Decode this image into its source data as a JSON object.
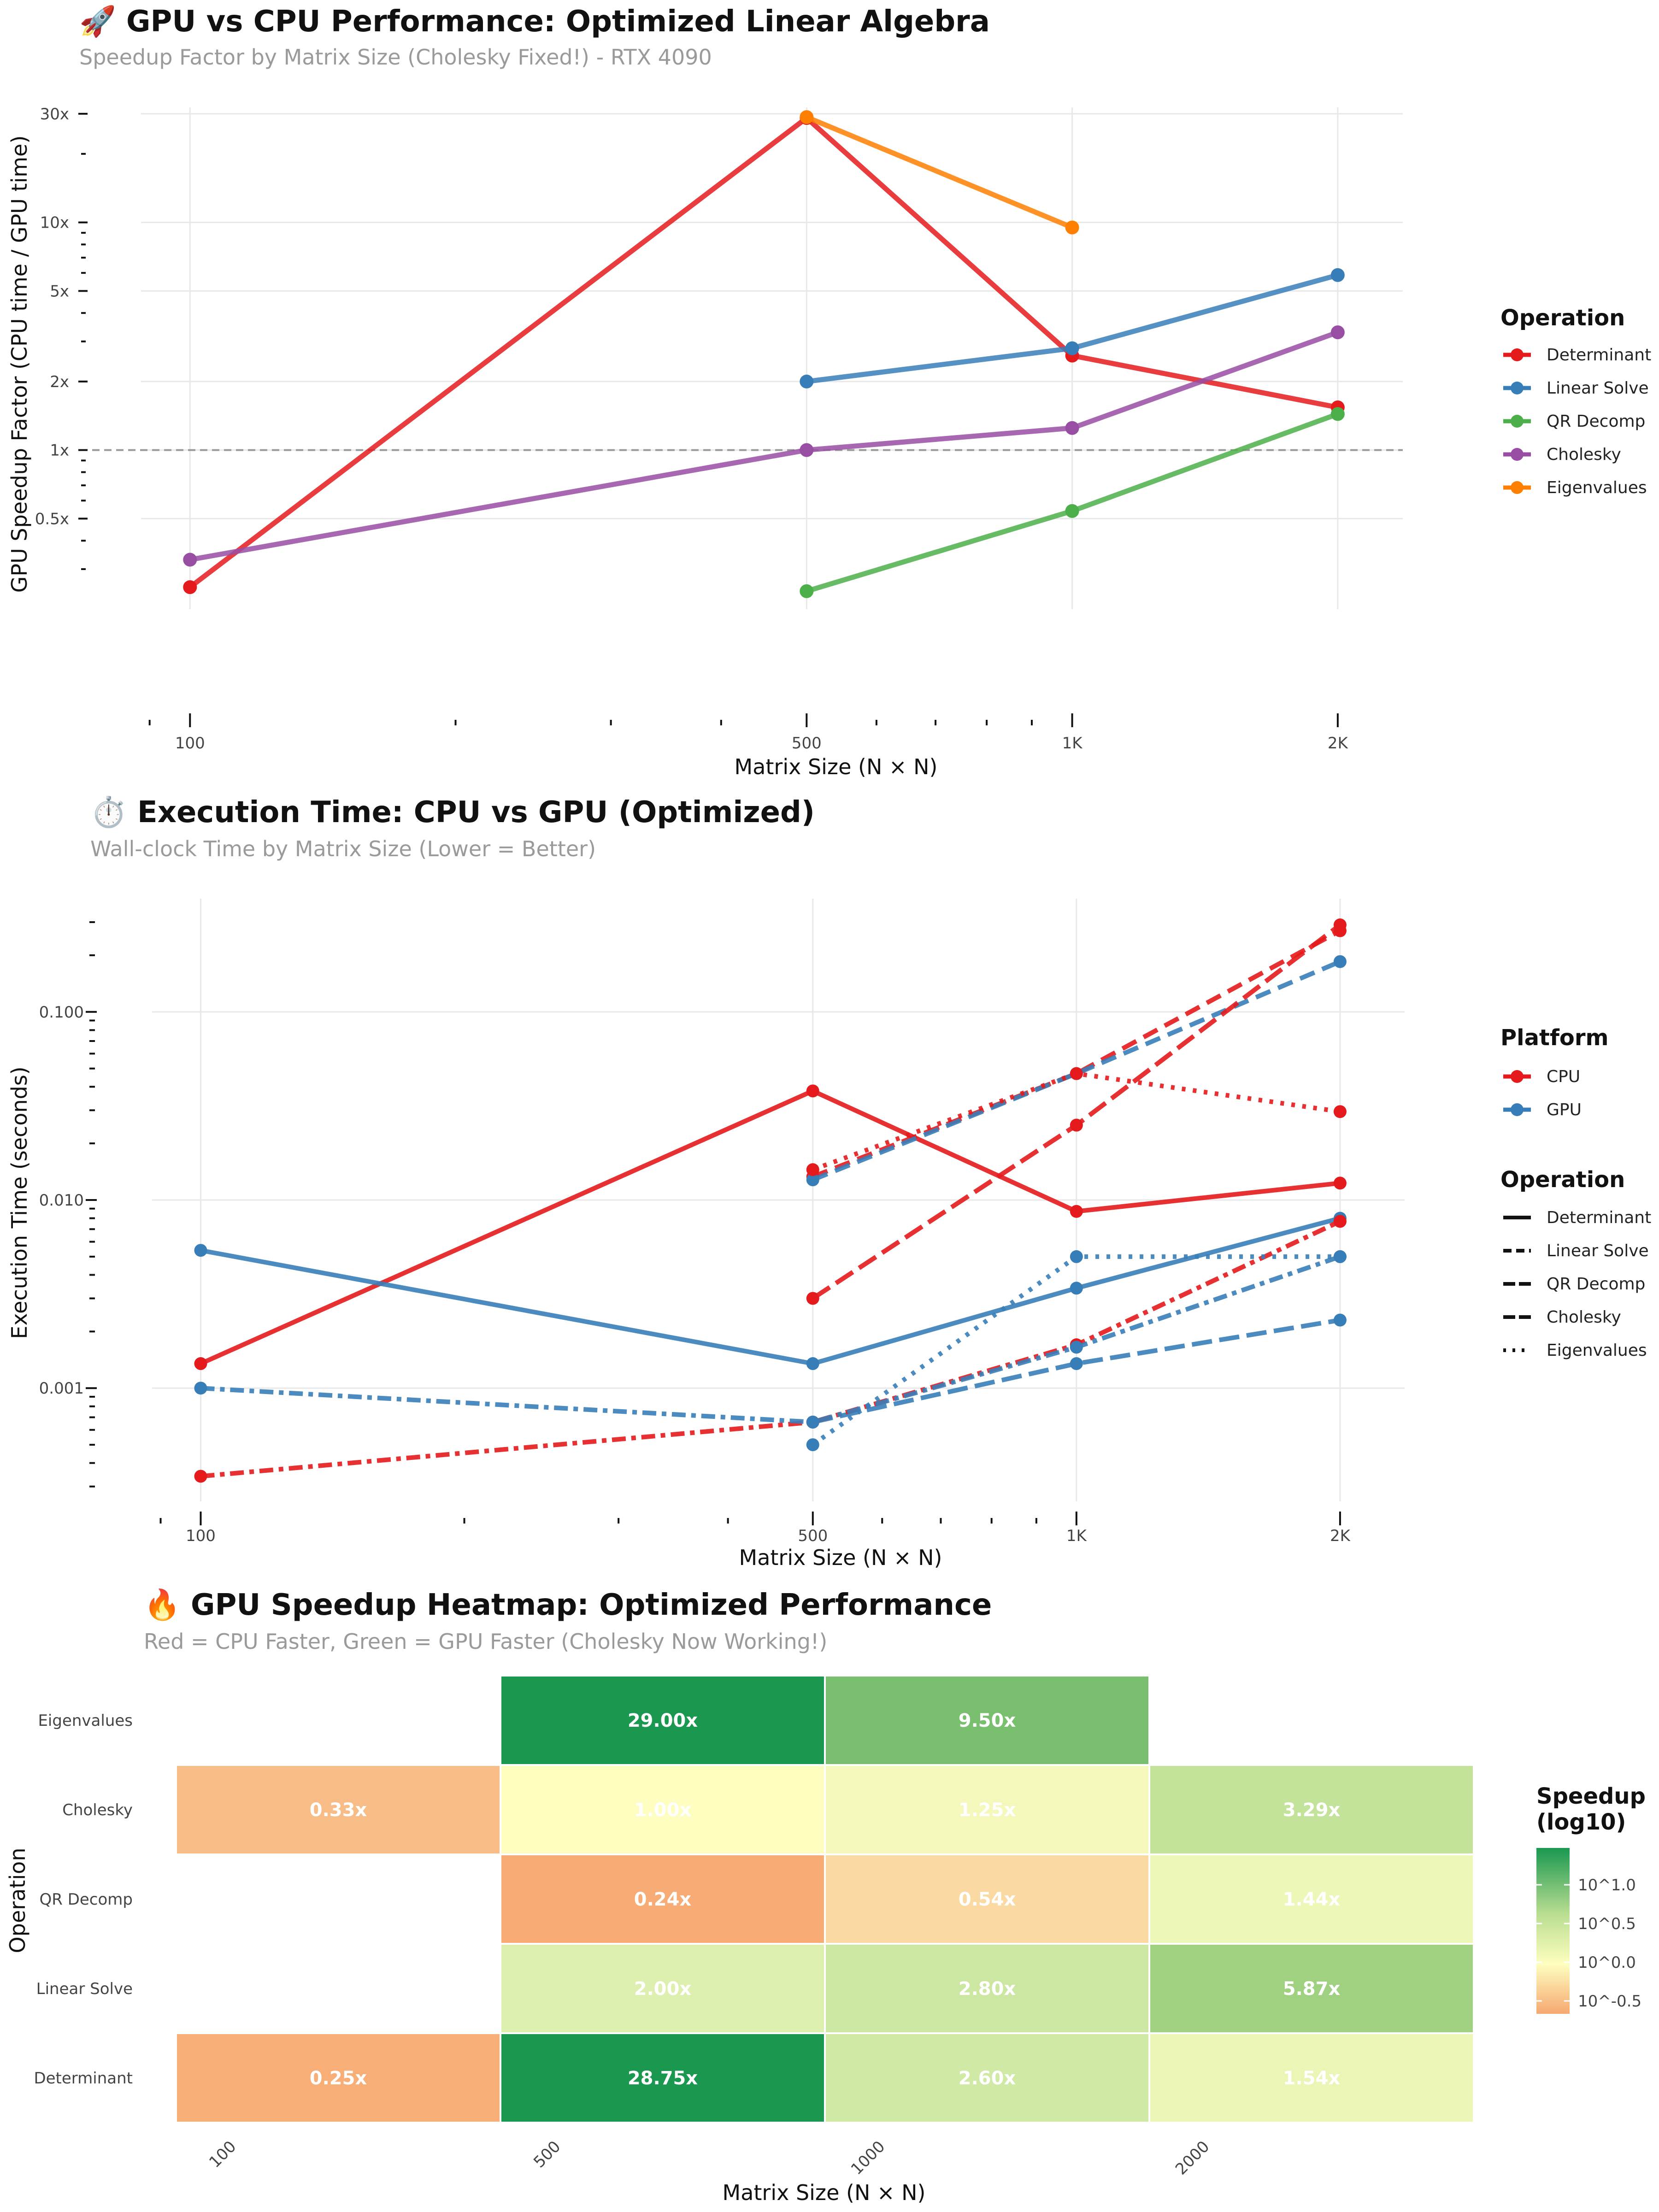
{
  "chart_data": [
    {
      "type": "line",
      "title": "🚀 GPU vs CPU Performance: Optimized Linear Algebra",
      "subtitle": "Speedup Factor by Matrix Size (Cholesky Fixed!) - RTX 4090",
      "xlabel": "Matrix Size (N × N)",
      "ylabel": "GPU Speedup Factor (CPU time / GPU time)",
      "x_scale": "log",
      "y_scale": "log",
      "x_ticks": [
        100,
        500,
        1000,
        2000
      ],
      "x_tick_labels": [
        "100",
        "500",
        "1K",
        "2K"
      ],
      "y_ticks": [
        0.5,
        1,
        2,
        5,
        10,
        30
      ],
      "y_tick_labels": [
        "0.5x",
        "1x",
        "2x",
        "5x",
        "10x",
        "30x"
      ],
      "reference_line": {
        "y": 1,
        "style": "dashed"
      },
      "legend_title": "Operation",
      "legend_position": "right",
      "series": [
        {
          "name": "Determinant",
          "color": "#e41a1c",
          "x": [
            100,
            500,
            1000,
            2000
          ],
          "values": [
            0.25,
            28.75,
            2.6,
            1.54
          ]
        },
        {
          "name": "Linear Solve",
          "color": "#377eb8",
          "x": [
            500,
            1000,
            2000
          ],
          "values": [
            2.0,
            2.8,
            5.87
          ]
        },
        {
          "name": "QR Decomp",
          "color": "#4daf4a",
          "x": [
            500,
            1000,
            2000
          ],
          "values": [
            0.24,
            0.54,
            1.44
          ]
        },
        {
          "name": "Cholesky",
          "color": "#984ea3",
          "x": [
            100,
            500,
            1000,
            2000
          ],
          "values": [
            0.33,
            1.0,
            1.25,
            3.29
          ]
        },
        {
          "name": "Eigenvalues",
          "color": "#ff7f00",
          "x": [
            500,
            1000
          ],
          "values": [
            29.0,
            9.5
          ]
        }
      ]
    },
    {
      "type": "line",
      "title": "⏱️  Execution Time: CPU vs GPU (Optimized)",
      "subtitle": "Wall-clock Time by Matrix Size (Lower = Better)",
      "xlabel": "Matrix Size (N × N)",
      "ylabel": "Execution Time (seconds)",
      "x_scale": "log",
      "y_scale": "log",
      "x_ticks": [
        100,
        500,
        1000,
        2000
      ],
      "x_tick_labels": [
        "100",
        "500",
        "1K",
        "2K"
      ],
      "y_ticks": [
        0.001,
        0.01,
        0.1
      ],
      "y_tick_labels": [
        "0.001",
        "0.010",
        "0.100"
      ],
      "legend_platform_title": "Platform",
      "legend_operation_title": "Operation",
      "legend_position": "right",
      "platforms": [
        {
          "name": "CPU",
          "color": "#e41a1c"
        },
        {
          "name": "GPU",
          "color": "#377eb8"
        }
      ],
      "operations": [
        {
          "name": "Determinant",
          "dash": "solid"
        },
        {
          "name": "Linear Solve",
          "dash": "dashed"
        },
        {
          "name": "QR Decomp",
          "dash": "longdash"
        },
        {
          "name": "Cholesky",
          "dash": "twodash"
        },
        {
          "name": "Eigenvalues",
          "dash": "dotted"
        }
      ],
      "series": [
        {
          "operation": "Determinant",
          "platform": "CPU",
          "x": [
            100,
            500,
            1000,
            2000
          ],
          "values": [
            0.00135,
            0.038,
            0.0087,
            0.0123
          ]
        },
        {
          "operation": "Determinant",
          "platform": "GPU",
          "x": [
            100,
            500,
            1000,
            2000
          ],
          "values": [
            0.0054,
            0.00135,
            0.0034,
            0.008
          ]
        },
        {
          "operation": "Linear Solve",
          "platform": "CPU",
          "x": [
            500,
            1000,
            2000
          ],
          "values": [
            0.0133,
            0.047,
            0.27
          ]
        },
        {
          "operation": "Linear Solve",
          "platform": "GPU",
          "x": [
            500,
            1000,
            2000
          ],
          "values": [
            0.0128,
            0.047,
            0.185
          ]
        },
        {
          "operation": "QR Decomp",
          "platform": "CPU",
          "x": [
            500,
            1000,
            2000
          ],
          "values": [
            0.003,
            0.025,
            0.29
          ]
        },
        {
          "operation": "QR Decomp",
          "platform": "GPU",
          "x": [
            500,
            1000,
            2000
          ],
          "values": [
            0.00066,
            0.00135,
            0.0023
          ]
        },
        {
          "operation": "Cholesky",
          "platform": "CPU",
          "x": [
            100,
            500,
            1000,
            2000
          ],
          "values": [
            0.00034,
            0.00066,
            0.0017,
            0.0077
          ]
        },
        {
          "operation": "Cholesky",
          "platform": "GPU",
          "x": [
            100,
            500,
            1000,
            2000
          ],
          "values": [
            0.001,
            0.00066,
            0.00165,
            0.005
          ]
        },
        {
          "operation": "Eigenvalues",
          "platform": "CPU",
          "x": [
            500,
            1000,
            2000
          ],
          "values": [
            0.0145,
            0.047,
            0.0295
          ]
        },
        {
          "operation": "Eigenvalues",
          "platform": "GPU",
          "x": [
            500,
            1000,
            2000
          ],
          "values": [
            0.0005,
            0.005,
            0.005
          ]
        }
      ]
    },
    {
      "type": "heatmap",
      "title": "🔥 GPU Speedup Heatmap: Optimized Performance",
      "subtitle": "Red = CPU Faster, Green = GPU Faster (Cholesky Now Working!)",
      "xlabel": "Matrix Size (N × N)",
      "ylabel": "Operation",
      "x_categories": [
        "100",
        "500",
        "1000",
        "2000"
      ],
      "y_categories": [
        "Eigenvalues",
        "Cholesky",
        "QR Decomp",
        "Linear Solve",
        "Determinant"
      ],
      "legend_title": "Speedup\n(log10)",
      "legend_ticks": [
        "10^1.0",
        "10^0.5",
        "10^0.0",
        "10^-0.5"
      ],
      "legend_position": "right",
      "cells": [
        {
          "y": "Eigenvalues",
          "x": "500",
          "value": 29.0,
          "label": "29.00x"
        },
        {
          "y": "Eigenvalues",
          "x": "1000",
          "value": 9.5,
          "label": "9.50x"
        },
        {
          "y": "Cholesky",
          "x": "100",
          "value": 0.33,
          "label": "0.33x"
        },
        {
          "y": "Cholesky",
          "x": "500",
          "value": 1.0,
          "label": "1.00x"
        },
        {
          "y": "Cholesky",
          "x": "1000",
          "value": 1.25,
          "label": "1.25x"
        },
        {
          "y": "Cholesky",
          "x": "2000",
          "value": 3.29,
          "label": "3.29x"
        },
        {
          "y": "QR Decomp",
          "x": "500",
          "value": 0.24,
          "label": "0.24x"
        },
        {
          "y": "QR Decomp",
          "x": "1000",
          "value": 0.54,
          "label": "0.54x"
        },
        {
          "y": "QR Decomp",
          "x": "2000",
          "value": 1.44,
          "label": "1.44x"
        },
        {
          "y": "Linear Solve",
          "x": "500",
          "value": 2.0,
          "label": "2.00x"
        },
        {
          "y": "Linear Solve",
          "x": "1000",
          "value": 2.8,
          "label": "2.80x"
        },
        {
          "y": "Linear Solve",
          "x": "2000",
          "value": 5.87,
          "label": "5.87x"
        },
        {
          "y": "Determinant",
          "x": "100",
          "value": 0.25,
          "label": "0.25x"
        },
        {
          "y": "Determinant",
          "x": "500",
          "value": 28.75,
          "label": "28.75x"
        },
        {
          "y": "Determinant",
          "x": "1000",
          "value": 2.6,
          "label": "2.60x"
        },
        {
          "y": "Determinant",
          "x": "2000",
          "value": 1.54,
          "label": "1.54x"
        }
      ]
    }
  ]
}
